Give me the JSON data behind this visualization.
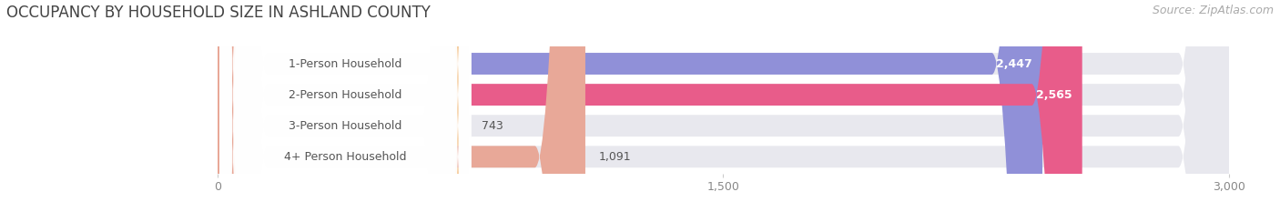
{
  "title": "OCCUPANCY BY HOUSEHOLD SIZE IN ASHLAND COUNTY",
  "source": "Source: ZipAtlas.com",
  "categories": [
    "1-Person Household",
    "2-Person Household",
    "3-Person Household",
    "4+ Person Household"
  ],
  "values": [
    2447,
    2565,
    743,
    1091
  ],
  "bar_colors": [
    "#9090d8",
    "#e85c8a",
    "#f5c896",
    "#e8a898"
  ],
  "xlim": [
    0,
    3000
  ],
  "xticks": [
    0,
    1500,
    3000
  ],
  "background_color": "#ffffff",
  "bar_bg_color": "#e8e8ee",
  "label_bg_color": "#ffffff",
  "title_fontsize": 12,
  "source_fontsize": 9,
  "label_fontsize": 9,
  "value_fontsize": 9,
  "bar_height": 0.7,
  "bar_gap": 0.15
}
